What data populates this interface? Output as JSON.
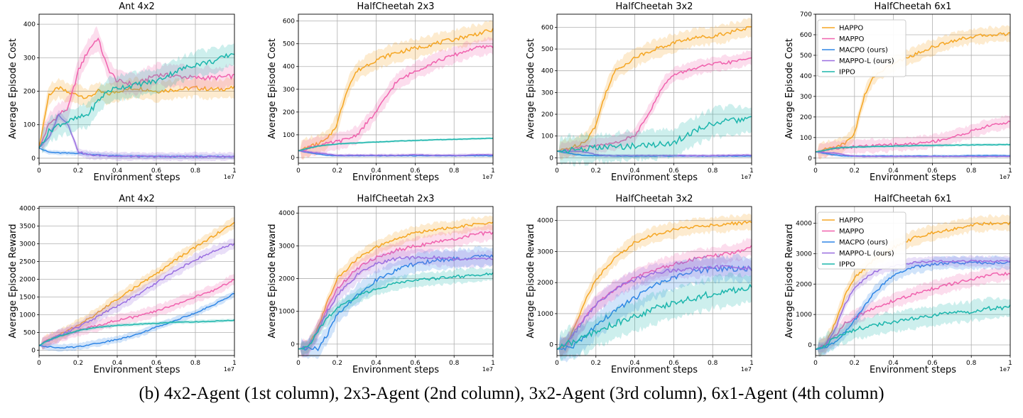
{
  "caption": "(b) 4x2-Agent (1st column), 2x3-Agent (2nd column), 3x2-Agent (3rd column), 6x1-Agent (4th column)",
  "colors": {
    "HAPPO": "#f5a623",
    "MAPPO": "#f062ae",
    "MACPO (ours)": "#2f86e6",
    "MAPPO-L (ours)": "#9a6fe0",
    "IPPO": "#1bb5ac"
  },
  "chart_data": [
    {
      "type": "line",
      "title": "Ant 4x2",
      "xlabel": "Environment steps",
      "ylabel": "Average Episode Cost",
      "x_exponent": "1e7",
      "xlim": [
        0,
        1.0
      ],
      "ylim": [
        -15,
        430
      ],
      "yticks": [
        0,
        100,
        200,
        300,
        400
      ],
      "xticks": [
        0.0,
        0.2,
        0.4,
        0.6,
        0.8,
        1.0
      ],
      "x": [
        0,
        0.05,
        0.1,
        0.15,
        0.2,
        0.25,
        0.3,
        0.35,
        0.4,
        0.5,
        0.6,
        0.7,
        0.8,
        0.9,
        1.0
      ],
      "series": [
        {
          "name": "HAPPO",
          "values": [
            30,
            190,
            210,
            195,
            190,
            180,
            200,
            190,
            200,
            210,
            200,
            205,
            210,
            205,
            210
          ],
          "spread": 35
        },
        {
          "name": "MAPPO",
          "values": [
            30,
            100,
            130,
            150,
            260,
            320,
            360,
            270,
            230,
            220,
            250,
            245,
            240,
            240,
            245
          ],
          "spread": 40
        },
        {
          "name": "MACPO (ours)",
          "values": [
            30,
            18,
            16,
            15,
            15,
            12,
            10,
            8,
            7,
            6,
            5,
            5,
            5,
            5,
            5
          ],
          "spread": 8
        },
        {
          "name": "MAPPO-L (ours)",
          "values": [
            30,
            60,
            130,
            100,
            20,
            10,
            8,
            8,
            6,
            5,
            5,
            5,
            5,
            5,
            5
          ],
          "spread": 15
        },
        {
          "name": "IPPO",
          "values": [
            30,
            80,
            100,
            110,
            120,
            130,
            170,
            200,
            210,
            220,
            230,
            260,
            280,
            290,
            315
          ],
          "spread": 45
        }
      ]
    },
    {
      "type": "line",
      "title": "HalfCheetah 2x3",
      "xlabel": "Environment steps",
      "ylabel": "Average Episode Cost",
      "x_exponent": "1e7",
      "xlim": [
        0,
        1.0
      ],
      "ylim": [
        -25,
        630
      ],
      "yticks": [
        0,
        100,
        200,
        300,
        400,
        500,
        600
      ],
      "xticks": [
        0.0,
        0.2,
        0.4,
        0.6,
        0.8,
        1.0
      ],
      "x": [
        0,
        0.1,
        0.15,
        0.2,
        0.25,
        0.3,
        0.4,
        0.5,
        0.6,
        0.7,
        0.8,
        0.9,
        1.0
      ],
      "series": [
        {
          "name": "HAPPO",
          "values": [
            30,
            60,
            80,
            150,
            300,
            380,
            430,
            460,
            480,
            500,
            520,
            540,
            560
          ],
          "spread": 50
        },
        {
          "name": "MAPPO",
          "values": [
            30,
            55,
            60,
            70,
            80,
            100,
            200,
            330,
            380,
            420,
            450,
            480,
            490
          ],
          "spread": 45
        },
        {
          "name": "MACPO (ours)",
          "values": [
            30,
            15,
            10,
            8,
            8,
            8,
            8,
            8,
            8,
            8,
            8,
            8,
            8
          ],
          "spread": 6
        },
        {
          "name": "MAPPO-L (ours)",
          "values": [
            30,
            20,
            15,
            10,
            10,
            10,
            10,
            10,
            12,
            10,
            10,
            12,
            12
          ],
          "spread": 8
        },
        {
          "name": "IPPO",
          "values": [
            30,
            50,
            55,
            60,
            62,
            64,
            68,
            72,
            75,
            78,
            80,
            82,
            85
          ],
          "spread": 6
        }
      ]
    },
    {
      "type": "line",
      "title": "HalfCheetah 3x2",
      "xlabel": "Environment steps",
      "ylabel": "Average Episode Cost",
      "x_exponent": "1e7",
      "xlim": [
        0,
        1.0
      ],
      "ylim": [
        -25,
        660
      ],
      "yticks": [
        0,
        100,
        200,
        300,
        400,
        500,
        600
      ],
      "xticks": [
        0.0,
        0.2,
        0.4,
        0.6,
        0.8,
        1.0
      ],
      "x": [
        0,
        0.1,
        0.15,
        0.2,
        0.25,
        0.3,
        0.4,
        0.5,
        0.55,
        0.6,
        0.7,
        0.8,
        0.9,
        1.0
      ],
      "series": [
        {
          "name": "HAPPO",
          "values": [
            30,
            55,
            80,
            150,
            300,
            400,
            460,
            500,
            510,
            530,
            550,
            560,
            580,
            600
          ],
          "spread": 50
        },
        {
          "name": "MAPPO",
          "values": [
            30,
            45,
            50,
            55,
            60,
            70,
            100,
            250,
            340,
            380,
            410,
            430,
            440,
            460
          ],
          "spread": 40
        },
        {
          "name": "MACPO (ours)",
          "values": [
            30,
            15,
            10,
            10,
            10,
            8,
            8,
            8,
            8,
            8,
            8,
            8,
            8,
            8
          ],
          "spread": 8
        },
        {
          "name": "MAPPO-L (ours)",
          "values": [
            30,
            30,
            25,
            15,
            10,
            10,
            10,
            10,
            10,
            10,
            10,
            10,
            12,
            12
          ],
          "spread": 8
        },
        {
          "name": "IPPO",
          "values": [
            30,
            38,
            42,
            45,
            48,
            50,
            55,
            60,
            65,
            70,
            120,
            160,
            170,
            180
          ],
          "spread": 80
        }
      ]
    },
    {
      "type": "line",
      "title": "HalfCheetah 6x1",
      "xlabel": "Environment steps",
      "ylabel": "Average Episode Cost",
      "x_exponent": "1e7",
      "legend": "upper-left",
      "xlim": [
        0,
        1.0
      ],
      "ylim": [
        -25,
        700
      ],
      "yticks": [
        0,
        100,
        200,
        300,
        400,
        500,
        600,
        700
      ],
      "xticks": [
        0.0,
        0.2,
        0.4,
        0.6,
        0.8,
        1.0
      ],
      "x": [
        0,
        0.1,
        0.15,
        0.2,
        0.25,
        0.3,
        0.4,
        0.5,
        0.6,
        0.7,
        0.8,
        0.9,
        1.0
      ],
      "series": [
        {
          "name": "HAPPO",
          "values": [
            30,
            55,
            70,
            120,
            300,
            400,
            460,
            500,
            540,
            570,
            590,
            600,
            605
          ],
          "spread": 45
        },
        {
          "name": "MAPPO",
          "values": [
            30,
            50,
            52,
            55,
            58,
            60,
            65,
            70,
            80,
            100,
            130,
            160,
            175
          ],
          "spread": 40
        },
        {
          "name": "MACPO (ours)",
          "values": [
            30,
            15,
            10,
            10,
            10,
            10,
            10,
            10,
            10,
            10,
            12,
            12,
            12
          ],
          "spread": 8
        },
        {
          "name": "MAPPO-L (ours)",
          "values": [
            30,
            25,
            15,
            10,
            8,
            8,
            8,
            8,
            8,
            8,
            8,
            8,
            8
          ],
          "spread": 6
        },
        {
          "name": "IPPO",
          "values": [
            30,
            48,
            52,
            54,
            55,
            56,
            58,
            60,
            62,
            63,
            64,
            65,
            66
          ],
          "spread": 8
        }
      ]
    },
    {
      "type": "line",
      "title": "Ant 4x2",
      "xlabel": "Environment steps",
      "ylabel": "Average Episode Reward",
      "x_exponent": "1e7",
      "xlim": [
        0,
        1.0
      ],
      "ylim": [
        -150,
        4050
      ],
      "yticks": [
        0,
        500,
        1000,
        1500,
        2000,
        2500,
        3000,
        3500,
        4000
      ],
      "xticks": [
        0.0,
        0.2,
        0.4,
        0.6,
        0.8,
        1.0
      ],
      "x": [
        0,
        0.05,
        0.1,
        0.2,
        0.3,
        0.4,
        0.5,
        0.6,
        0.7,
        0.8,
        0.9,
        1.0
      ],
      "series": [
        {
          "name": "HAPPO",
          "values": [
            130,
            300,
            420,
            700,
            1050,
            1450,
            1800,
            2150,
            2550,
            2900,
            3250,
            3600
          ],
          "spread": 200
        },
        {
          "name": "MAPPO",
          "values": [
            130,
            300,
            400,
            550,
            700,
            850,
            950,
            1100,
            1300,
            1500,
            1700,
            2000
          ],
          "spread": 200
        },
        {
          "name": "MACPO (ours)",
          "values": [
            130,
            100,
            60,
            100,
            200,
            300,
            450,
            650,
            850,
            1050,
            1300,
            1600
          ],
          "spread": 120
        },
        {
          "name": "MAPPO-L (ours)",
          "values": [
            130,
            280,
            400,
            650,
            950,
            1250,
            1550,
            1900,
            2250,
            2550,
            2800,
            3000
          ],
          "spread": 200
        },
        {
          "name": "IPPO",
          "values": [
            130,
            290,
            390,
            550,
            650,
            700,
            730,
            760,
            790,
            800,
            820,
            850
          ],
          "spread": 60
        }
      ]
    },
    {
      "type": "line",
      "title": "HalfCheetah 2x3",
      "xlabel": "Environment steps",
      "ylabel": "Average Episode Reward",
      "x_exponent": "1e7",
      "xlim": [
        0,
        1.0
      ],
      "ylim": [
        -350,
        4200
      ],
      "yticks": [
        0,
        1000,
        2000,
        3000,
        4000
      ],
      "xticks": [
        0.0,
        0.2,
        0.4,
        0.6,
        0.8,
        1.0
      ],
      "x": [
        0,
        0.05,
        0.1,
        0.15,
        0.2,
        0.3,
        0.4,
        0.5,
        0.6,
        0.7,
        0.8,
        0.9,
        1.0
      ],
      "series": [
        {
          "name": "HAPPO",
          "values": [
            -150,
            -100,
            500,
            1300,
            2000,
            2600,
            2950,
            3200,
            3400,
            3500,
            3550,
            3650,
            3700
          ],
          "spread": 250
        },
        {
          "name": "MAPPO",
          "values": [
            -150,
            -100,
            450,
            1100,
            1700,
            2300,
            2650,
            2850,
            3000,
            3100,
            3200,
            3350,
            3400
          ],
          "spread": 300
        },
        {
          "name": "MACPO (ours)",
          "values": [
            -150,
            -120,
            -150,
            300,
            900,
            1500,
            1950,
            2250,
            2450,
            2550,
            2600,
            2650,
            2700
          ],
          "spread": 350
        },
        {
          "name": "MAPPO-L (ours)",
          "values": [
            -150,
            -100,
            400,
            1000,
            1500,
            2100,
            2450,
            2600,
            2650,
            2650,
            2600,
            2600,
            2600
          ],
          "spread": 300
        },
        {
          "name": "IPPO",
          "values": [
            -150,
            -100,
            400,
            800,
            1100,
            1450,
            1700,
            1850,
            1950,
            2000,
            2050,
            2100,
            2150
          ],
          "spread": 250
        }
      ]
    },
    {
      "type": "line",
      "title": "HalfCheetah 3x2",
      "xlabel": "Environment steps",
      "ylabel": "Average Episode Reward",
      "x_exponent": "1e7",
      "xlim": [
        0,
        1.0
      ],
      "ylim": [
        -350,
        4450
      ],
      "yticks": [
        0,
        1000,
        2000,
        3000,
        4000
      ],
      "xticks": [
        0.0,
        0.2,
        0.4,
        0.6,
        0.8,
        1.0
      ],
      "x": [
        0,
        0.05,
        0.1,
        0.15,
        0.2,
        0.3,
        0.4,
        0.5,
        0.6,
        0.7,
        0.8,
        0.9,
        1.0
      ],
      "series": [
        {
          "name": "HAPPO",
          "values": [
            -150,
            0,
            700,
            1500,
            2100,
            2800,
            3300,
            3550,
            3700,
            3800,
            3850,
            3900,
            3950
          ],
          "spread": 300
        },
        {
          "name": "MAPPO",
          "values": [
            -150,
            0,
            500,
            900,
            1300,
            1800,
            2150,
            2400,
            2600,
            2750,
            2850,
            2950,
            3150
          ],
          "spread": 350
        },
        {
          "name": "MACPO (ours)",
          "values": [
            -150,
            -100,
            0,
            300,
            600,
            1100,
            1500,
            1900,
            2150,
            2350,
            2450,
            2450,
            2450
          ],
          "spread": 500
        },
        {
          "name": "MAPPO-L (ours)",
          "values": [
            -150,
            50,
            450,
            900,
            1300,
            1800,
            2100,
            2300,
            2400,
            2450,
            2500,
            2500,
            2450
          ],
          "spread": 350
        },
        {
          "name": "IPPO",
          "values": [
            -150,
            50,
            100,
            250,
            400,
            700,
            900,
            1150,
            1350,
            1500,
            1650,
            1750,
            1850
          ],
          "spread": 600
        }
      ]
    },
    {
      "type": "line",
      "title": "HalfCheetah 6x1",
      "xlabel": "Environment steps",
      "ylabel": "Average Episode Reward",
      "x_exponent": "1e7",
      "legend": "upper-left",
      "xlim": [
        0,
        1.0
      ],
      "ylim": [
        -350,
        4550
      ],
      "yticks": [
        0,
        1000,
        2000,
        3000,
        4000
      ],
      "xticks": [
        0.0,
        0.2,
        0.4,
        0.6,
        0.8,
        1.0
      ],
      "x": [
        0,
        0.05,
        0.1,
        0.15,
        0.2,
        0.3,
        0.4,
        0.5,
        0.6,
        0.7,
        0.8,
        0.9,
        1.0
      ],
      "series": [
        {
          "name": "HAPPO",
          "values": [
            -150,
            0,
            700,
            1600,
            2200,
            2800,
            3200,
            3500,
            3700,
            3800,
            3950,
            4000,
            4000
          ],
          "spread": 300
        },
        {
          "name": "MAPPO",
          "values": [
            -150,
            0,
            300,
            700,
            900,
            1200,
            1450,
            1650,
            1850,
            2000,
            2150,
            2300,
            2350
          ],
          "spread": 300
        },
        {
          "name": "MACPO (ours)",
          "values": [
            -150,
            -100,
            100,
            400,
            800,
            1700,
            2300,
            2550,
            2650,
            2700,
            2700,
            2700,
            2700
          ],
          "spread": 250
        },
        {
          "name": "MAPPO-L (ours)",
          "values": [
            -150,
            0,
            500,
            1300,
            1900,
            2400,
            2600,
            2700,
            2750,
            2750,
            2750,
            2750,
            2750
          ],
          "spread": 200
        },
        {
          "name": "IPPO",
          "values": [
            -150,
            0,
            250,
            400,
            500,
            650,
            750,
            850,
            950,
            1050,
            1100,
            1200,
            1250
          ],
          "spread": 400
        }
      ]
    }
  ]
}
